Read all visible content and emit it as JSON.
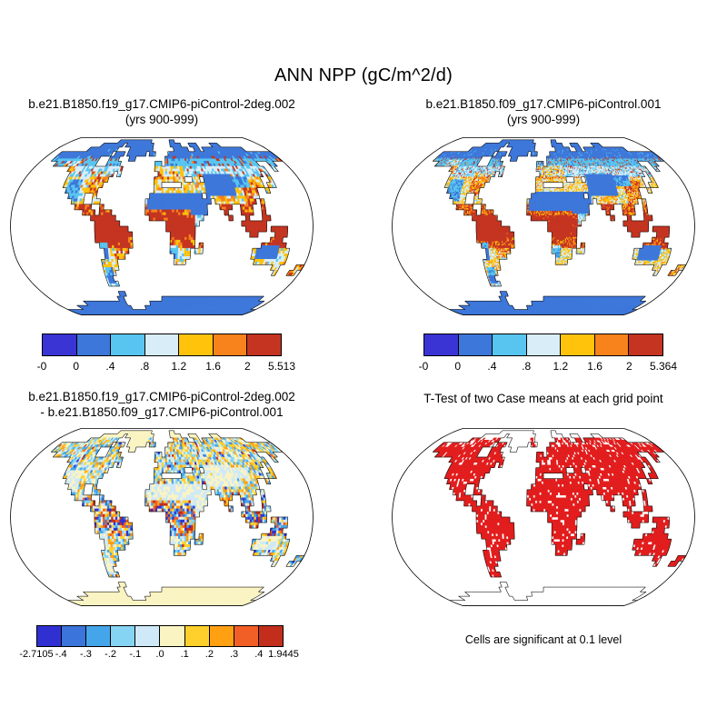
{
  "title": "ANN NPP (gC/m^2/d)",
  "panels": {
    "top_left": {
      "title_line1": "b.e21.B1850.f19_g17.CMIP6-piControl-2deg.002",
      "title_line2": "(yrs 900-999)"
    },
    "top_right": {
      "title_line1": "b.e21.B1850.f09_g17.CMIP6-piControl.001",
      "title_line2": "(yrs 900-999)"
    },
    "bottom_left": {
      "title_line1": "b.e21.B1850.f19_g17.CMIP6-piControl-2deg.002",
      "title_line2": " - b.e21.B1850.f09_g17.CMIP6-piControl.001"
    },
    "bottom_right": {
      "title": "T-Test of two Case means at each grid point",
      "caption": "Cells are significant at 0.1 level"
    }
  },
  "palette": {
    "npp": [
      "#3a34d4",
      "#3d77da",
      "#58c5f0",
      "#d8edf8",
      "#ffc30b",
      "#f8821c",
      "#c43420"
    ],
    "diff": [
      "#3030d2",
      "#3b74da",
      "#45a5ea",
      "#86d4f3",
      "#cfe9f8",
      "#faf4c3",
      "#ffd02b",
      "#ffa013",
      "#f15f26",
      "#c22d1c"
    ],
    "significant": "#e21d1d",
    "coastline": "#111111"
  },
  "chart_data": [
    {
      "type": "heatmap",
      "panel": "top_left",
      "title": "b.e21.B1850.f19_g17.CMIP6-piControl-2deg.002",
      "subtitle": "(yrs 900-999)",
      "variable": "ANN NPP (gC/m^2/d)",
      "projection": "robinson",
      "levels": [
        0,
        0.4,
        0.8,
        1.2,
        1.6,
        2
      ],
      "colorbar_labels": [
        "-0",
        "0",
        ".4",
        ".8",
        "1.2",
        "1.6",
        "2",
        "5.513"
      ],
      "data_min": -0.0,
      "data_max": 5.513
    },
    {
      "type": "heatmap",
      "panel": "top_right",
      "title": "b.e21.B1850.f09_g17.CMIP6-piControl.001",
      "subtitle": "(yrs 900-999)",
      "variable": "ANN NPP (gC/m^2/d)",
      "projection": "robinson",
      "levels": [
        0,
        0.4,
        0.8,
        1.2,
        1.6,
        2
      ],
      "colorbar_labels": [
        "-0",
        "0",
        ".4",
        ".8",
        "1.2",
        "1.6",
        "2",
        "5.364"
      ],
      "data_min": -0.0,
      "data_max": 5.364
    },
    {
      "type": "heatmap",
      "panel": "bottom_left",
      "title": "b.e21.B1850.f19_g17.CMIP6-piControl-2deg.002 - b.e21.B1850.f09_g17.CMIP6-piControl.001",
      "variable": "ANN NPP difference (gC/m^2/d)",
      "projection": "robinson",
      "levels": [
        -0.4,
        -0.3,
        -0.2,
        -0.1,
        0,
        0.1,
        0.2,
        0.3,
        0.4
      ],
      "colorbar_labels": [
        "-2.7105",
        "-.4",
        "-.3",
        "-.2",
        "-.1",
        ".0",
        ".1",
        ".2",
        ".3",
        ".4",
        "1.9445"
      ],
      "data_min": -2.7105,
      "data_max": 1.9445
    },
    {
      "type": "map",
      "panel": "bottom_right",
      "title": "T-Test of two Case means at each grid point",
      "note": "Cells are significant at 0.1 level",
      "significant_color": "#e21d1d"
    }
  ],
  "land_rows": [
    [],
    [
      [
        19,
        31
      ],
      [
        39,
        40
      ]
    ],
    [
      [
        14,
        21
      ],
      [
        23,
        32
      ],
      [
        39,
        42
      ],
      [
        46,
        48
      ],
      [
        54,
        56
      ]
    ],
    [
      [
        11,
        20
      ],
      [
        25,
        32
      ],
      [
        40,
        44
      ],
      [
        47,
        48
      ],
      [
        50,
        63
      ]
    ],
    [
      [
        3,
        19
      ],
      [
        21,
        23
      ],
      [
        25,
        30
      ],
      [
        32,
        33
      ],
      [
        38,
        71
      ]
    ],
    [
      [
        3,
        16
      ],
      [
        20,
        22
      ],
      [
        26,
        27
      ],
      [
        37,
        71
      ]
    ],
    [
      [
        5,
        16
      ],
      [
        20,
        23
      ],
      [
        34,
        35
      ],
      [
        37,
        63
      ],
      [
        67,
        68
      ]
    ],
    [
      [
        10,
        24
      ],
      [
        34,
        64
      ],
      [
        67,
        67
      ]
    ],
    [
      [
        11,
        22
      ],
      [
        24,
        24
      ],
      [
        35,
        62
      ],
      [
        64,
        64
      ]
    ],
    [
      [
        11,
        21
      ],
      [
        34,
        41
      ],
      [
        44,
        45
      ],
      [
        47,
        61
      ],
      [
        64,
        64
      ]
    ],
    [
      [
        11,
        20
      ],
      [
        34,
        35
      ],
      [
        41,
        61
      ],
      [
        63,
        64
      ]
    ],
    [
      [
        12,
        19
      ],
      [
        34,
        59
      ],
      [
        62,
        62
      ]
    ],
    [
      [
        13,
        16
      ],
      [
        19,
        19
      ],
      [
        33,
        45
      ],
      [
        47,
        59
      ]
    ],
    [
      [
        14,
        16
      ],
      [
        19,
        20
      ],
      [
        32,
        47
      ],
      [
        49,
        58
      ],
      [
        60,
        60
      ]
    ],
    [
      [
        15,
        18
      ],
      [
        21,
        21
      ],
      [
        32,
        46
      ],
      [
        50,
        52
      ],
      [
        55,
        57
      ],
      [
        60,
        60
      ]
    ],
    [
      [
        17,
        19
      ],
      [
        21,
        23
      ],
      [
        32,
        46
      ],
      [
        51,
        51
      ],
      [
        55,
        57
      ],
      [
        60,
        60
      ]
    ],
    [
      [
        19,
        24
      ],
      [
        33,
        45
      ],
      [
        52,
        52
      ],
      [
        56,
        56
      ],
      [
        60,
        61
      ]
    ],
    [
      [
        20,
        25
      ],
      [
        37,
        44
      ],
      [
        55,
        60
      ]
    ],
    [
      [
        20,
        27
      ],
      [
        37,
        43
      ],
      [
        56,
        60
      ],
      [
        62,
        65
      ]
    ],
    [
      [
        20,
        28
      ],
      [
        38,
        43
      ],
      [
        57,
        58
      ],
      [
        63,
        65
      ]
    ],
    [
      [
        20,
        28
      ],
      [
        38,
        43
      ],
      [
        62,
        64
      ]
    ],
    [
      [
        21,
        28
      ],
      [
        38,
        43
      ],
      [
        45,
        45
      ],
      [
        60,
        65
      ]
    ],
    [
      [
        22,
        27
      ],
      [
        38,
        42
      ],
      [
        44,
        45
      ],
      [
        58,
        66
      ]
    ],
    [
      [
        22,
        26
      ],
      [
        39,
        42
      ],
      [
        58,
        66
      ]
    ],
    [
      [
        21,
        24
      ],
      [
        39,
        41
      ],
      [
        59,
        66
      ]
    ],
    [
      [
        21,
        24
      ],
      [
        64,
        65
      ],
      [
        70,
        71
      ]
    ],
    [
      [
        21,
        23
      ],
      [
        65,
        65
      ],
      [
        69,
        70
      ]
    ],
    [
      [
        21,
        22
      ]
    ],
    [
      [
        21,
        23
      ]
    ],
    [],
    [
      [
        23,
        24
      ]
    ],
    [
      [
        22,
        23
      ],
      [
        36,
        67
      ]
    ],
    [
      [
        10,
        23
      ],
      [
        32,
        69
      ]
    ],
    [
      [
        6,
        24
      ],
      [
        30,
        69
      ]
    ],
    [
      [
        0,
        71
      ]
    ],
    [
      [
        0,
        71
      ]
    ]
  ]
}
